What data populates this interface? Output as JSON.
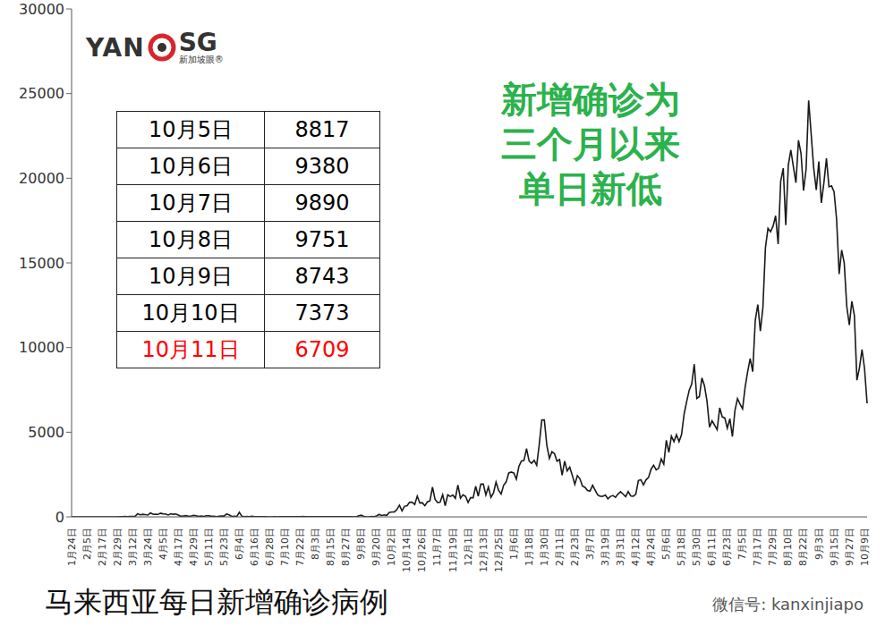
{
  "chart_data": {
    "type": "line",
    "title": "马来西亚每日新增确诊病例",
    "annotation": [
      "新增确诊为",
      "三个月以来",
      "单日新低"
    ],
    "annotation_color": "#2bb24c",
    "logo": {
      "left": "YAN",
      "right": "SG",
      "sub": "新加坡眼®"
    },
    "watermark": "微信号: kanxinjiapo",
    "grid": false,
    "marker": "none",
    "line_style": "solid",
    "color": "#1a1a1a",
    "ylim": [
      0,
      30000
    ],
    "yticks": [
      0,
      5000,
      10000,
      15000,
      20000,
      25000,
      30000
    ],
    "categories": [
      "1月24日",
      null,
      null,
      null,
      null,
      null,
      "2月5日",
      null,
      null,
      null,
      null,
      null,
      "2月17日",
      null,
      null,
      null,
      null,
      null,
      "2月29日",
      null,
      null,
      null,
      null,
      null,
      "3月12日",
      null,
      null,
      null,
      null,
      null,
      "3月24日",
      null,
      null,
      null,
      null,
      null,
      "4月5日",
      null,
      null,
      null,
      null,
      null,
      "4月17日",
      null,
      null,
      null,
      null,
      null,
      "4月29日",
      null,
      null,
      null,
      null,
      null,
      "5月11日",
      null,
      null,
      null,
      null,
      null,
      "5月23日",
      null,
      null,
      null,
      null,
      null,
      "6月4日",
      null,
      null,
      null,
      null,
      null,
      "6月16日",
      null,
      null,
      null,
      null,
      null,
      "6月28日",
      null,
      null,
      null,
      null,
      null,
      "7月10日",
      null,
      null,
      null,
      null,
      null,
      "7月22日",
      null,
      null,
      null,
      null,
      null,
      "8月3日",
      null,
      null,
      null,
      null,
      null,
      "8月15日",
      null,
      null,
      null,
      null,
      null,
      "8月27日",
      null,
      null,
      null,
      null,
      null,
      "9月8日",
      null,
      null,
      null,
      null,
      null,
      "9月20日",
      null,
      null,
      null,
      null,
      null,
      "10月2日",
      null,
      null,
      null,
      null,
      null,
      "10月14日",
      null,
      null,
      null,
      null,
      null,
      "10月26日",
      null,
      null,
      null,
      null,
      null,
      "11月7日",
      null,
      null,
      null,
      null,
      null,
      "11月19日",
      null,
      null,
      null,
      null,
      null,
      "12月1日",
      null,
      null,
      null,
      null,
      null,
      "12月13日",
      null,
      null,
      null,
      null,
      null,
      "12月25日",
      null,
      null,
      null,
      null,
      null,
      "1月6日",
      null,
      null,
      null,
      null,
      null,
      "1月18日",
      null,
      null,
      null,
      null,
      null,
      "1月30日",
      null,
      null,
      null,
      null,
      null,
      "2月11日",
      null,
      null,
      null,
      null,
      null,
      "2月23日",
      null,
      null,
      null,
      null,
      null,
      "3月7日",
      null,
      null,
      null,
      null,
      null,
      "3月19日",
      null,
      null,
      null,
      null,
      null,
      "3月31日",
      null,
      null,
      null,
      null,
      null,
      "4月12日",
      null,
      null,
      null,
      null,
      null,
      "4月24日",
      null,
      null,
      null,
      null,
      null,
      "5月6日",
      null,
      null,
      null,
      null,
      null,
      "5月18日",
      null,
      null,
      null,
      null,
      null,
      "5月30日",
      null,
      null,
      null,
      null,
      null,
      "6月11日",
      null,
      null,
      null,
      null,
      null,
      "6月23日",
      null,
      null,
      null,
      null,
      null,
      "7月5日",
      null,
      null,
      null,
      null,
      null,
      "7月17日",
      null,
      null,
      null,
      null,
      null,
      "7月29日",
      null,
      null,
      null,
      null,
      null,
      "8月10日",
      null,
      null,
      null,
      null,
      null,
      "8月22日",
      null,
      null,
      null,
      null,
      null,
      "9月3日",
      null,
      null,
      null,
      null,
      null,
      "9月15日",
      null,
      null,
      null,
      null,
      null,
      "9月27日",
      null,
      null,
      null,
      null,
      null,
      "10月9日",
      null
    ],
    "values": [
      3,
      1,
      0,
      1,
      2,
      0,
      2,
      1,
      0,
      1,
      0,
      0,
      0,
      0,
      0,
      0,
      0,
      1,
      0,
      7,
      14,
      28,
      6,
      24,
      20,
      41,
      190,
      120,
      153,
      130,
      106,
      235,
      159,
      150,
      142,
      217,
      179,
      170,
      109,
      184,
      153,
      170,
      110,
      36,
      57,
      71,
      40,
      52,
      94,
      69,
      30,
      55,
      30,
      67,
      67,
      37,
      36,
      17,
      31,
      48,
      48,
      172,
      115,
      30,
      38,
      20,
      277,
      37,
      7,
      19,
      8,
      41,
      8,
      6,
      5,
      4,
      4,
      3,
      3,
      3,
      6,
      2,
      7,
      4,
      5,
      5,
      8,
      6,
      15,
      14,
      7,
      23,
      8,
      8,
      6,
      11,
      5,
      16,
      13,
      8,
      17,
      7,
      13,
      12,
      10,
      10,
      15,
      10,
      12,
      10,
      6,
      2,
      5,
      62,
      100,
      26,
      11,
      3,
      18,
      16,
      52,
      147,
      82,
      115,
      89,
      260,
      287,
      293,
      432,
      691,
      357,
      629,
      660,
      869,
      865,
      732,
      1228,
      823,
      835,
      659,
      889,
      957,
      1755,
      1032,
      852,
      869,
      1309,
      660,
      1304,
      1208,
      1290,
      1096,
      1884,
      1109,
      1309,
      1212,
      851,
      1141,
      1123,
      1810,
      1229,
      1937,
      1937,
      1295,
      1772,
      1155,
      1417,
      2062,
      1581,
      1349,
      1870,
      2068,
      2593,
      2643,
      2593,
      2232,
      2985,
      3309,
      3337,
      4029,
      3306,
      3170,
      3346,
      3048,
      4275,
      5725,
      5728,
      4214,
      3455,
      3847,
      3731,
      3288,
      3384,
      2464,
      3297,
      2720,
      2936,
      2461,
      1924,
      2437,
      2253,
      1828,
      1745,
      1555,
      1529,
      1868,
      1575,
      1294,
      1213,
      1219,
      1290,
      1067,
      1209,
      1263,
      1156,
      1354,
      1483,
      1349,
      1193,
      1495,
      1242,
      1224,
      1340,
      2148,
      2195,
      1889,
      2188,
      2331,
      2815,
      3052,
      2776,
      2875,
      3418,
      3120,
      4519,
      3807,
      4765,
      4446,
      4855,
      4444,
      4865,
      6075,
      6806,
      7478,
      7857,
      9020,
      6999,
      7105,
      8209,
      7748,
      6849,
      5304,
      5671,
      5419,
      5150,
      6440,
      5911,
      5841,
      5244,
      5803,
      4743,
      6276,
      6988,
      6658,
      6387,
      7654,
      8574,
      9353,
      8574,
      11618,
      12541,
      10972,
      12366,
      15902,
      17045,
      16840,
      17170,
      17786,
      16117,
      19819,
      20596,
      17236,
      20780,
      21668,
      20670,
      19740,
      22242,
      21468,
      19268,
      20546,
      24599,
      22597,
      20579,
      19307,
      20988,
      18547,
      19733,
      21176,
      19495,
      19550,
      19198,
      17577,
      14345,
      15759,
      14990,
      12434,
      11332,
      12735,
      11889,
      8075,
      8817,
      9890,
      8743,
      6709
    ],
    "table": {
      "rows": [
        {
          "date": "10月5日",
          "value": 8817,
          "color": "#000000"
        },
        {
          "date": "10月6日",
          "value": 9380,
          "color": "#000000"
        },
        {
          "date": "10月7日",
          "value": 9890,
          "color": "#000000"
        },
        {
          "date": "10月8日",
          "value": 9751,
          "color": "#000000"
        },
        {
          "date": "10月9日",
          "value": 8743,
          "color": "#000000"
        },
        {
          "date": "10月10日",
          "value": 7373,
          "color": "#000000"
        },
        {
          "date": "10月11日",
          "value": 6709,
          "color": "#ff0000"
        }
      ]
    }
  }
}
